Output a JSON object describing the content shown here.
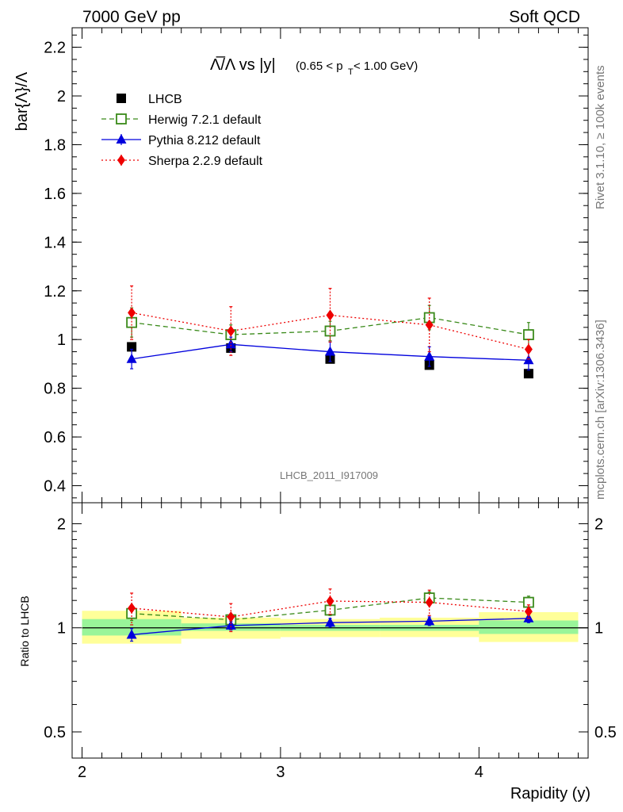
{
  "header": {
    "left": "7000 GeV pp",
    "right": "Soft QCD"
  },
  "side_labels": {
    "rivet": "Rivet 3.1.10, ≥ 100k events",
    "mcplots": "mcplots.cern.ch [arXiv:1306.3436]"
  },
  "colors": {
    "lhcb": "#000000",
    "herwig": "#3a8a1a",
    "pythia": "#0000dd",
    "sherpa": "#ee0000",
    "band_outer": "#ffff99",
    "band_inner": "#99f599"
  },
  "chart_data": [
    {
      "type": "scatter",
      "panel": "main",
      "title_parts": {
        "ratio": "Λ̅/Λ vs |y|",
        "cut_pre": "(0.65 < p",
        "cut_sub": "T",
        "cut_post": " < 1.00 GeV)"
      },
      "ylabel": "bar{Λ}/Λ",
      "watermark": "LHCB_2011_I917009",
      "xlim": [
        1.95,
        4.55
      ],
      "ylim": [
        0.33,
        2.28
      ],
      "yticks": [
        "0.4",
        "0.6",
        "0.8",
        "1",
        "1.2",
        "1.4",
        "1.6",
        "1.8",
        "2",
        "2.2"
      ],
      "x": [
        2.25,
        2.75,
        3.25,
        3.75,
        4.25
      ],
      "series": [
        {
          "name": "LHCB",
          "key": "lhcb",
          "marker": "square-filled",
          "values": [
            0.97,
            0.965,
            0.92,
            0.895,
            0.86
          ],
          "err": [
            0.015,
            0.015,
            0.015,
            0.015,
            0.015
          ]
        },
        {
          "name": "Herwig 7.2.1 default",
          "key": "herwig",
          "marker": "square-open",
          "line": "dashed",
          "values": [
            1.07,
            1.02,
            1.035,
            1.09,
            1.02
          ],
          "err": [
            0.06,
            0.04,
            0.04,
            0.05,
            0.05
          ]
        },
        {
          "name": "Pythia 8.212 default",
          "key": "pythia",
          "marker": "triangle",
          "line": "solid",
          "values": [
            0.92,
            0.98,
            0.95,
            0.93,
            0.915
          ],
          "err": [
            0.04,
            0.03,
            0.04,
            0.04,
            0.04
          ]
        },
        {
          "name": "Sherpa 2.2.9 default",
          "key": "sherpa",
          "marker": "diamond",
          "line": "dotted",
          "values": [
            1.11,
            1.035,
            1.1,
            1.06,
            0.96
          ],
          "err_up": [
            0.11,
            0.1,
            0.11,
            0.11,
            0.04
          ],
          "err_dn": [
            0.11,
            0.1,
            0.11,
            0.11,
            0.04
          ]
        }
      ]
    },
    {
      "type": "scatter",
      "panel": "ratio",
      "ylabel": "Ratio to LHCB",
      "xlabel": "Rapidity (y)",
      "scale": "log",
      "ylim": [
        0.42,
        2.3
      ],
      "yticks": [
        "0.5",
        "1",
        "2"
      ],
      "xticks": [
        "2",
        "3",
        "4"
      ],
      "bins": [
        [
          2.0,
          2.5
        ],
        [
          2.5,
          3.0
        ],
        [
          3.0,
          3.5
        ],
        [
          3.5,
          4.0
        ],
        [
          4.0,
          4.5
        ]
      ],
      "band_inner": [
        [
          0.95,
          1.06
        ],
        [
          0.98,
          1.03
        ],
        [
          0.98,
          1.02
        ],
        [
          0.98,
          1.02
        ],
        [
          0.96,
          1.05
        ]
      ],
      "band_outer": [
        [
          0.9,
          1.12
        ],
        [
          0.93,
          1.07
        ],
        [
          0.94,
          1.06
        ],
        [
          0.94,
          1.07
        ],
        [
          0.91,
          1.11
        ]
      ],
      "x": [
        2.25,
        2.75,
        3.25,
        3.75,
        4.25
      ],
      "series": [
        {
          "name": "Herwig 7.2.1 default",
          "key": "herwig",
          "marker": "square-open",
          "line": "dashed",
          "values": [
            1.1,
            1.055,
            1.125,
            1.22,
            1.185
          ],
          "err": [
            0.05,
            0.04,
            0.04,
            0.05,
            0.05
          ]
        },
        {
          "name": "Pythia 8.212 default",
          "key": "pythia",
          "marker": "triangle",
          "line": "solid",
          "values": [
            0.955,
            1.015,
            1.035,
            1.045,
            1.065
          ],
          "err": [
            0.04,
            0.03,
            0.03,
            0.03,
            0.03
          ]
        },
        {
          "name": "Sherpa 2.2.9 default",
          "key": "sherpa",
          "marker": "diamond",
          "line": "dotted",
          "values": [
            1.14,
            1.075,
            1.195,
            1.185,
            1.115
          ],
          "err": [
            0.12,
            0.1,
            0.1,
            0.1,
            0.05
          ]
        }
      ]
    }
  ]
}
